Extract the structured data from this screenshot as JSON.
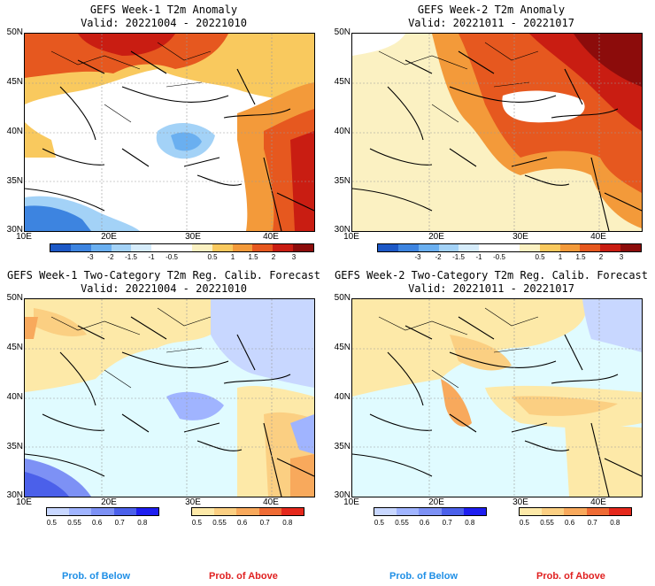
{
  "colors": {
    "sea_prob": "#e0fbff",
    "below_palette": [
      "#c8d7ff",
      "#a0b4ff",
      "#7d91f5",
      "#4b60ea",
      "#1e1ef0"
    ],
    "above_palette": [
      "#fde9a8",
      "#fbcf82",
      "#f8a95c",
      "#ef6b34",
      "#e5281c"
    ],
    "anomaly_palette": [
      "#1c58c6",
      "#3d84e0",
      "#6aaff0",
      "#a3d2f7",
      "#d6ecfb",
      "#ffffff",
      "#ffffff",
      "#fbf1c2",
      "#f9c95e",
      "#f39a3a",
      "#e6581f",
      "#c91d12",
      "#8c0c0b"
    ],
    "label_below": "#1f8fe6",
    "label_above": "#e02020"
  },
  "panels": [
    {
      "title": "GEFS Week-1 T2m Anomaly",
      "valid": "Valid: 20221004 - 20221010"
    },
    {
      "title": "GEFS Week-2 T2m Anomaly",
      "valid": "Valid: 20221011 - 20221017"
    },
    {
      "title": "GEFS Week-1 Two-Category T2m Reg. Calib. Forecast",
      "valid": "Valid: 20221004 - 20221010"
    },
    {
      "title": "GEFS Week-2 Two-Category T2m Reg. Calib. Forecast",
      "valid": "Valid: 20221011 - 20221017"
    }
  ],
  "axes": {
    "lat_labels": [
      "50N",
      "45N",
      "40N",
      "35N",
      "30N"
    ],
    "lon_labels": [
      "10E",
      "20E",
      "30E",
      "40E"
    ]
  },
  "anomaly_scale": [
    "-3",
    "-2",
    "-1.5",
    "-1",
    "-0.5",
    "0.5",
    "1",
    "1.5",
    "2",
    "3"
  ],
  "prob_scale": [
    "0.5",
    "0.55",
    "0.6",
    "0.7",
    "0.8"
  ],
  "prob_labels": {
    "below": "Prob. of Below",
    "above": "Prob. of Above"
  }
}
